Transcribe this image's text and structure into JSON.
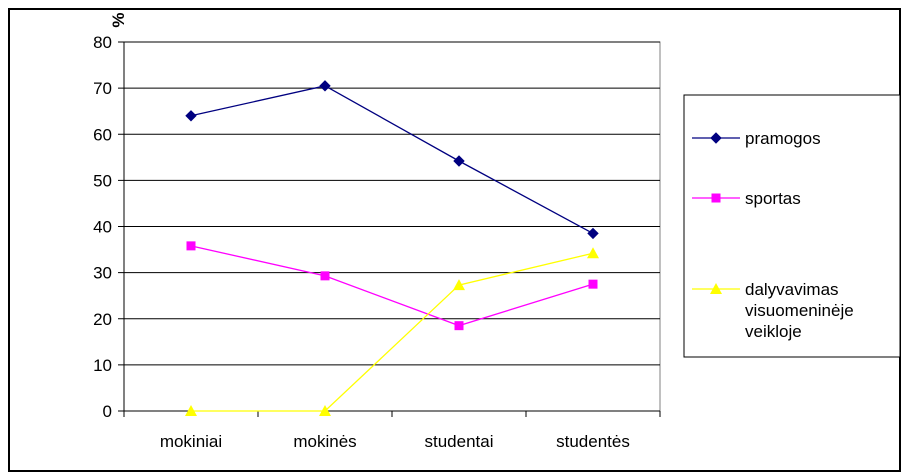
{
  "chart_data": {
    "type": "line",
    "title": "",
    "xlabel": "",
    "ylabel": "%",
    "ylim": [
      0,
      80
    ],
    "yticks": [
      0,
      10,
      20,
      30,
      40,
      50,
      60,
      70,
      80
    ],
    "categories": [
      "mokiniai",
      "mokinės",
      "studentai",
      "studentės"
    ],
    "grid": true,
    "legend_position": "right",
    "series": [
      {
        "name": "pramogos",
        "values": [
          64,
          70.5,
          54.2,
          38.5
        ],
        "color": "#000080",
        "marker": "diamond"
      },
      {
        "name": "sportas",
        "values": [
          35.8,
          29.3,
          18.5,
          27.5
        ],
        "color": "#FF00FF",
        "marker": "square"
      },
      {
        "name": "dalyvavimas visuomeninėje veikloje",
        "legend_lines": [
          "dalyvavimas",
          "visuomeninėje",
          "veikloje"
        ],
        "values": [
          0,
          0,
          27.3,
          34.2
        ],
        "color": "#FFFF00",
        "marker": "triangle"
      }
    ]
  }
}
